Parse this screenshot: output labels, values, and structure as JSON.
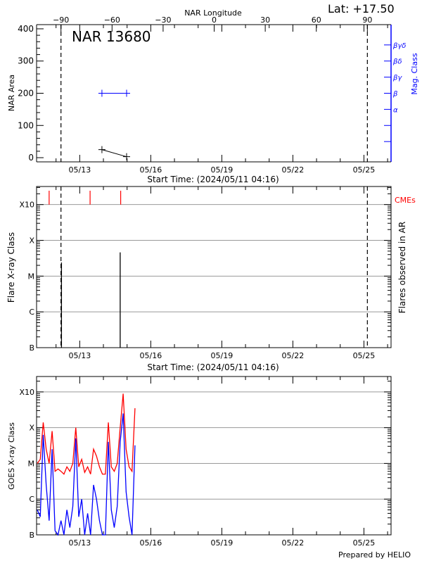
{
  "header": {
    "latitude": "Lat: +17.50",
    "top_axis_label": "NAR Longitude",
    "credit": "Prepared by HELIO"
  },
  "colors": {
    "mag_class": "#0000ff",
    "cme": "#ff0000",
    "goes_long": "#ff0000",
    "goes_short": "#0000ff",
    "grid": "#999999",
    "axes": "#000000"
  },
  "chart_data": [
    {
      "type": "line",
      "title": "NAR 13680",
      "ylabel": "NAR Area",
      "y2label": "Mag. Class",
      "xlabel": "Start Time: (2024/05/11 04:16)",
      "xlim": [
        "2024-05-11T04:16",
        "2024-05-26T03:30"
      ],
      "ylim": [
        -13,
        413
      ],
      "x_tick_labels": [
        "05/13",
        "05/16",
        "05/19",
        "05/22",
        "05/25"
      ],
      "y_ticks": [
        0,
        100,
        200,
        300,
        400
      ],
      "top_axis": {
        "label": "NAR Longitude",
        "ticks": [
          -90,
          -60,
          -30,
          0,
          30,
          60,
          90
        ]
      },
      "limb_markers": [
        "2024-05-12T05:00",
        "2024-05-25T03:30"
      ],
      "area_series": {
        "x": [
          "2024-05-13T22:30",
          "2024-05-14T23:30"
        ],
        "y": [
          25,
          3
        ]
      },
      "mag_class_axis": [
        {
          "label": "α",
          "at": 150
        },
        {
          "label": "β",
          "at": 200
        },
        {
          "label": "βγ",
          "at": 250
        },
        {
          "label": "βδ",
          "at": 300
        },
        {
          "label": "βγδ",
          "at": 350
        }
      ],
      "mag_class_series": {
        "x": [
          "2024-05-13T22:30",
          "2024-05-14T23:30"
        ],
        "class": [
          "β",
          "β"
        ]
      }
    },
    {
      "type": "bar",
      "ylabel": "Flare X-ray Class",
      "y2label": "Flares observed in AR",
      "xlabel": "Start Time: (2024/05/11 04:16)",
      "y_scale": "log",
      "ylim": [
        1e-07,
        0.0032
      ],
      "class_ticks": [
        {
          "label": "B",
          "flux": 1e-07
        },
        {
          "label": "C",
          "flux": 1e-06
        },
        {
          "label": "M",
          "flux": 1e-05
        },
        {
          "label": "X",
          "flux": 0.0001
        },
        {
          "label": "X10",
          "flux": 0.001
        }
      ],
      "grid": true,
      "flares": [
        {
          "time": "2024-05-12T05:30",
          "flux": 2.4e-05
        },
        {
          "time": "2024-05-14T17:00",
          "flux": 4.6e-05
        }
      ],
      "cme_label": "CMEs",
      "cmes": [
        "2024-05-11T17:00",
        "2024-05-13T10:30",
        "2024-05-14T17:30"
      ]
    },
    {
      "type": "line",
      "ylabel": "GOES X-ray Class",
      "y_scale": "log",
      "ylim": [
        1e-07,
        0.0027
      ],
      "grid": true,
      "x": [
        "2024-05-11T05:00",
        "2024-05-11T08:00",
        "2024-05-11T11:00",
        "2024-05-11T14:00",
        "2024-05-11T17:00",
        "2024-05-11T20:00",
        "2024-05-11T23:00",
        "2024-05-12T02:00",
        "2024-05-12T05:00",
        "2024-05-12T08:00",
        "2024-05-12T11:00",
        "2024-05-12T14:00",
        "2024-05-12T17:00",
        "2024-05-12T20:00",
        "2024-05-12T23:00",
        "2024-05-13T02:00",
        "2024-05-13T05:00",
        "2024-05-13T08:00",
        "2024-05-13T11:00",
        "2024-05-13T14:00",
        "2024-05-13T17:00",
        "2024-05-13T20:00",
        "2024-05-13T23:00",
        "2024-05-14T02:00",
        "2024-05-14T05:00",
        "2024-05-14T08:00",
        "2024-05-14T11:00",
        "2024-05-14T14:00",
        "2024-05-14T17:00",
        "2024-05-14T20:00",
        "2024-05-14T23:00",
        "2024-05-15T02:00",
        "2024-05-15T05:00",
        "2024-05-15T08:00"
      ],
      "series": [
        {
          "color": "#ff0000",
          "values": [
            1e-05,
            1.3e-05,
            0.00014,
            2.5e-05,
            1e-05,
            8e-05,
            6e-06,
            7e-06,
            6e-06,
            5e-06,
            8e-06,
            6e-06,
            1e-05,
            0.0001,
            8e-06,
            1.3e-05,
            5.6e-06,
            8e-06,
            5e-06,
            2.5e-05,
            1.6e-05,
            8e-06,
            5e-06,
            5e-06,
            0.00014,
            8e-06,
            6e-06,
            1e-05,
            0.0001,
            0.00089,
            2.5e-05,
            8e-06,
            6e-06,
            0.00035
          ]
        },
        {
          "color": "#0000ff",
          "values": [
            5e-07,
            3.2e-07,
            6.3e-05,
            2.5e-06,
            2.5e-07,
            2.5e-05,
            1.3e-07,
            1e-07,
            2.5e-07,
            1e-07,
            5e-07,
            1.6e-07,
            6.3e-07,
            5e-05,
            3.2e-07,
            1e-06,
            1e-07,
            4e-07,
            1e-07,
            2.5e-06,
            1e-06,
            2.5e-07,
            1e-07,
            1e-07,
            4e-05,
            5e-07,
            1.6e-07,
            6.3e-07,
            4e-05,
            0.00025,
            1.6e-06,
            3.2e-07,
            1e-07,
            3.2e-05
          ]
        }
      ]
    }
  ]
}
